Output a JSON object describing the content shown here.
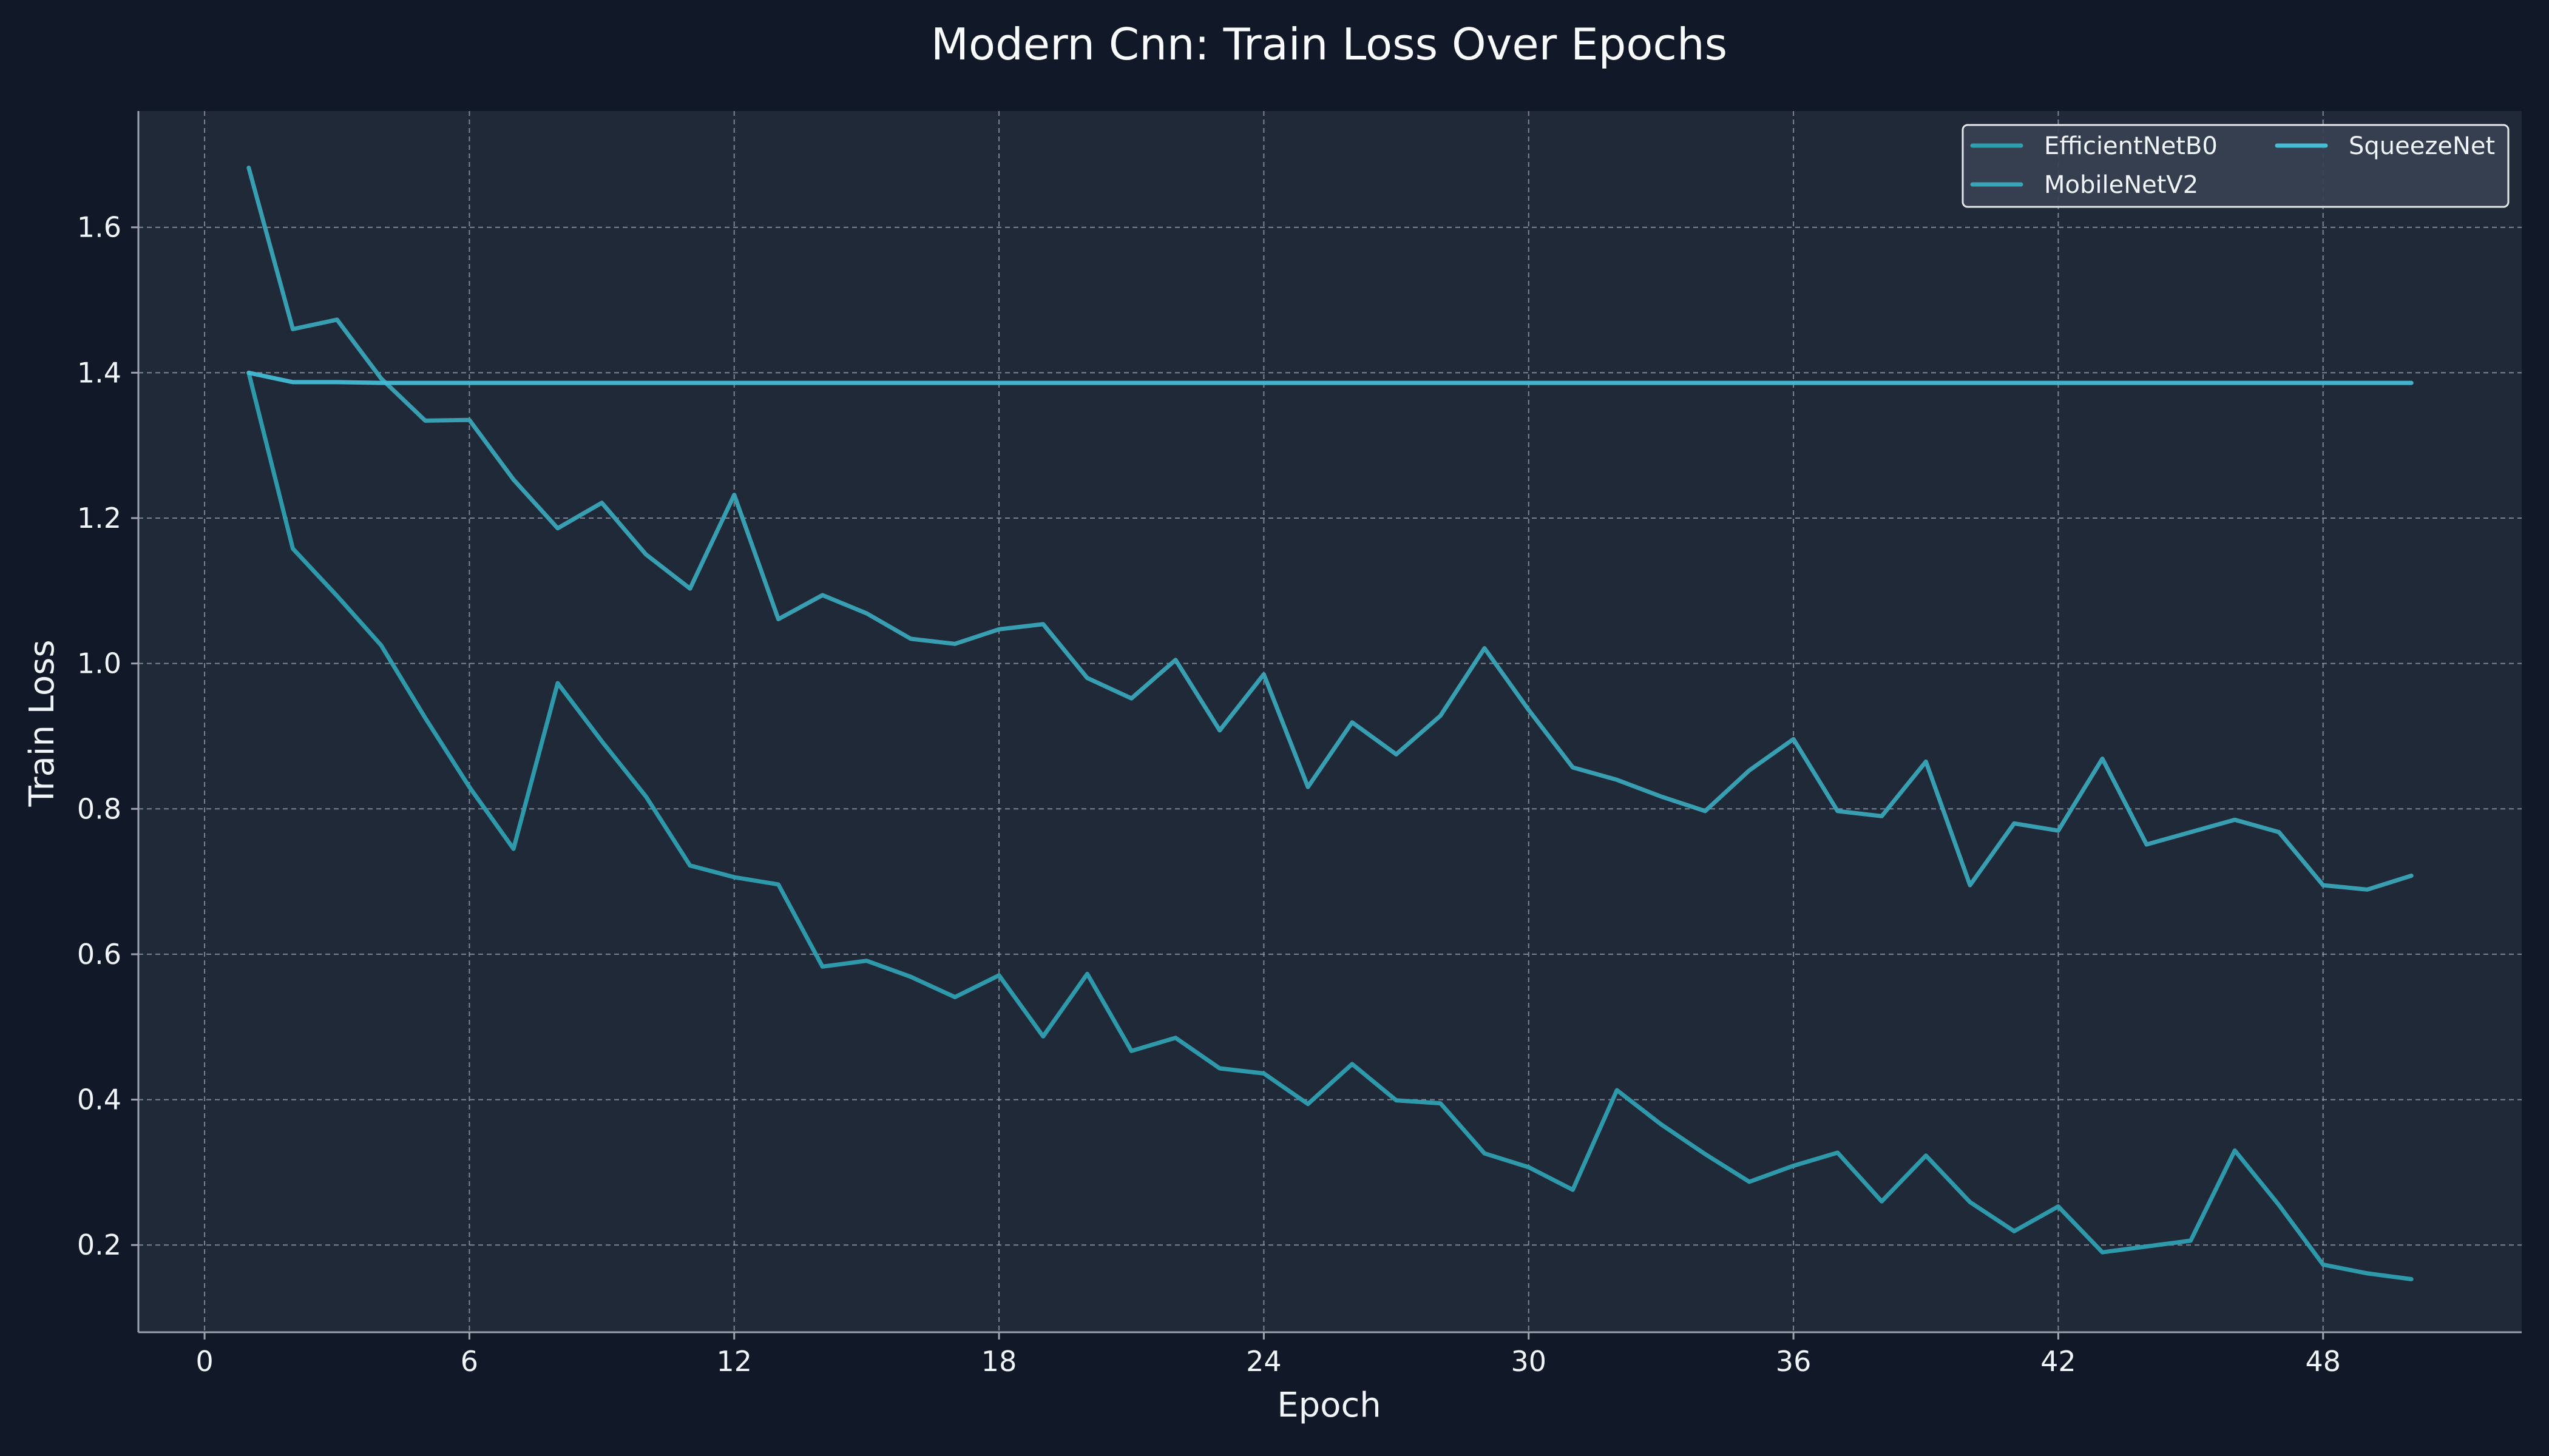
{
  "chart_data": {
    "type": "line",
    "title": "Modern Cnn: Train Loss Over Epochs",
    "xlabel": "Epoch",
    "ylabel": "Train Loss",
    "xlim": [
      -1.5,
      52.5
    ],
    "ylim": [
      0.08,
      1.76
    ],
    "xticks": [
      0,
      6,
      12,
      18,
      24,
      30,
      36,
      42,
      48
    ],
    "yticks": [
      0.2,
      0.4,
      0.6,
      0.8,
      1.0,
      1.2,
      1.4,
      1.6
    ],
    "grid": true,
    "legend": {
      "position": "top-right",
      "columns": 2
    },
    "x": [
      1,
      2,
      3,
      4,
      5,
      6,
      7,
      8,
      9,
      10,
      11,
      12,
      13,
      14,
      15,
      16,
      17,
      18,
      19,
      20,
      21,
      22,
      23,
      24,
      25,
      26,
      27,
      28,
      29,
      30,
      31,
      32,
      33,
      34,
      35,
      36,
      37,
      38,
      39,
      40,
      41,
      42,
      43,
      44,
      45,
      46,
      47,
      48,
      49,
      50
    ],
    "series": [
      {
        "name": "EfficientNetB0",
        "color": "#2f9fb0",
        "values": [
          1.4,
          1.158,
          1.093,
          1.025,
          0.925,
          0.83,
          0.745,
          0.973,
          0.893,
          0.817,
          0.722,
          0.706,
          0.696,
          0.583,
          0.591,
          0.569,
          0.541,
          0.571,
          0.487,
          0.573,
          0.467,
          0.485,
          0.443,
          0.436,
          0.394,
          0.449,
          0.399,
          0.395,
          0.326,
          0.307,
          0.276,
          0.413,
          0.366,
          0.325,
          0.287,
          0.309,
          0.327,
          0.26,
          0.323,
          0.259,
          0.219,
          0.253,
          0.19,
          0.198,
          0.206,
          0.33,
          0.255,
          0.173,
          0.161,
          0.153
        ]
      },
      {
        "name": "MobileNetV2",
        "color": "#3aa5b8",
        "values": [
          1.682,
          1.46,
          1.473,
          1.392,
          1.334,
          1.335,
          1.253,
          1.186,
          1.221,
          1.15,
          1.103,
          1.232,
          1.061,
          1.094,
          1.069,
          1.034,
          1.027,
          1.047,
          1.054,
          0.98,
          0.952,
          1.005,
          0.908,
          0.985,
          0.83,
          0.919,
          0.875,
          0.928,
          1.021,
          0.936,
          0.857,
          0.84,
          0.817,
          0.797,
          0.853,
          0.896,
          0.797,
          0.79,
          0.865,
          0.695,
          0.78,
          0.77,
          0.869,
          0.751,
          0.768,
          0.785,
          0.768,
          0.695,
          0.689,
          0.708
        ]
      },
      {
        "name": "SqueezeNet",
        "color": "#45bbd4",
        "values": [
          1.4,
          1.387,
          1.387,
          1.386,
          1.386,
          1.386,
          1.386,
          1.386,
          1.386,
          1.386,
          1.386,
          1.386,
          1.386,
          1.386,
          1.386,
          1.386,
          1.386,
          1.386,
          1.386,
          1.386,
          1.386,
          1.386,
          1.386,
          1.386,
          1.386,
          1.386,
          1.386,
          1.386,
          1.386,
          1.386,
          1.386,
          1.386,
          1.386,
          1.386,
          1.386,
          1.386,
          1.386,
          1.386,
          1.386,
          1.386,
          1.386,
          1.386,
          1.386,
          1.386,
          1.386,
          1.386,
          1.386,
          1.386,
          1.386,
          1.386
        ]
      }
    ]
  },
  "colors": {
    "background": "#111827",
    "plot_background": "#1f2937",
    "grid": "#9ca3af",
    "axis": "#9ca3af",
    "text": "#f1f5f9",
    "legend_background": "#374151",
    "legend_border": "#e5e7eb"
  }
}
